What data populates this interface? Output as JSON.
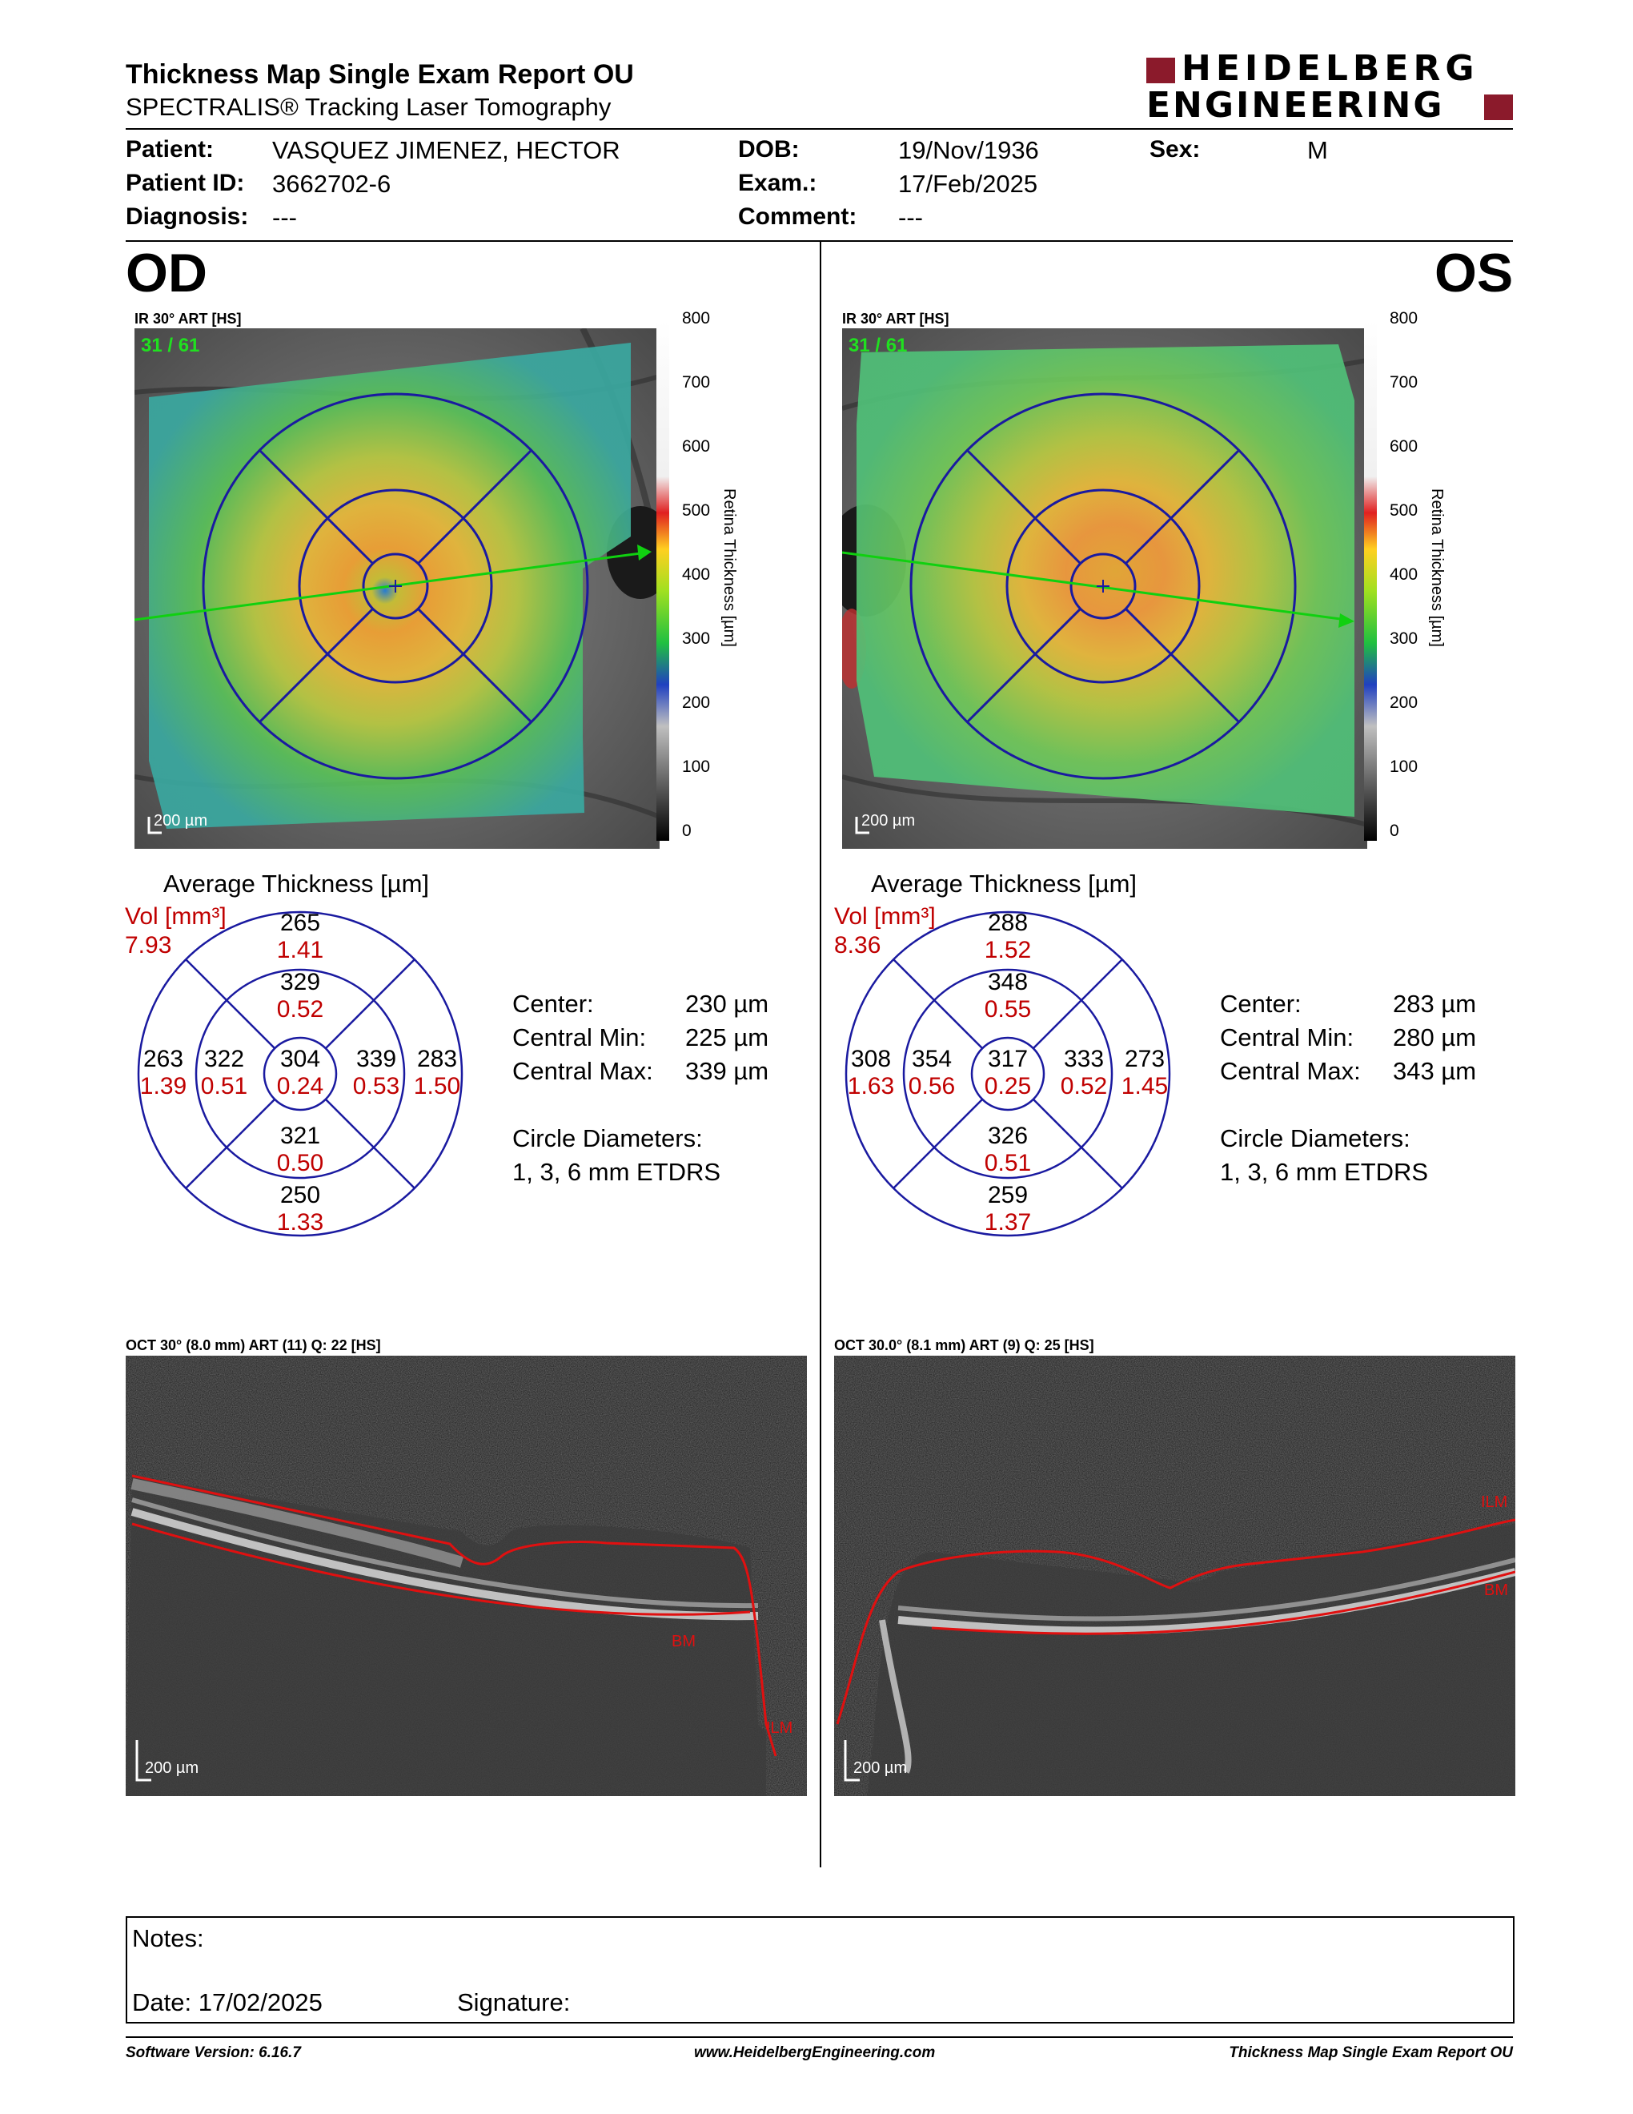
{
  "report": {
    "title": "Thickness Map Single Exam Report OU",
    "subtitle": "SPECTRALIS® Tracking Laser Tomography",
    "brand_line1": "HEIDELBERG",
    "brand_line2": "ENGINEERING",
    "brand_color": "#8b1a2b"
  },
  "patient": {
    "patient_label": "Patient:",
    "patient_value": "VASQUEZ JIMENEZ, HECTOR",
    "id_label": "Patient ID:",
    "id_value": "3662702-6",
    "diagnosis_label": "Diagnosis:",
    "diagnosis_value": "---",
    "dob_label": "DOB:",
    "dob_value": "19/Nov/1936",
    "exam_label": "Exam.:",
    "exam_value": "17/Feb/2025",
    "comment_label": "Comment:",
    "comment_value": "---",
    "sex_label": "Sex:",
    "sex_value": "M"
  },
  "od": {
    "eye": "OD",
    "ir_label": "IR 30° ART [HS]",
    "frame": "31 / 61",
    "scale": "200 µm",
    "avg_title": "Average Thickness [µm]",
    "vol_label": "Vol [mm³]",
    "vol_total": "7.93",
    "sectors": {
      "outer_top": [
        "265",
        "1.41"
      ],
      "inner_top": [
        "329",
        "0.52"
      ],
      "outer_left": [
        "263",
        "1.39"
      ],
      "inner_left": [
        "322",
        "0.51"
      ],
      "center": [
        "304",
        "0.24"
      ],
      "inner_right": [
        "339",
        "0.53"
      ],
      "outer_right": [
        "283",
        "1.50"
      ],
      "inner_bottom": [
        "321",
        "0.50"
      ],
      "outer_bottom": [
        "250",
        "1.33"
      ]
    },
    "center_label": "Center:",
    "center_value": "230 µm",
    "cmin_label": "Central Min:",
    "cmin_value": "225 µm",
    "cmax_label": "Central Max:",
    "cmax_value": "339 µm",
    "circ_label": "Circle Diameters:",
    "circ_value": "1, 3, 6 mm ETDRS",
    "oct_label": "OCT 30° (8.0 mm) ART (11) Q: 22 [HS]",
    "oct_scale": "200 µm",
    "ilm": "ILM",
    "bm": "BM"
  },
  "os": {
    "eye": "OS",
    "ir_label": "IR 30° ART [HS]",
    "frame": "31 / 61",
    "scale": "200 µm",
    "avg_title": "Average Thickness [µm]",
    "vol_label": "Vol [mm³]",
    "vol_total": "8.36",
    "sectors": {
      "outer_top": [
        "288",
        "1.52"
      ],
      "inner_top": [
        "348",
        "0.55"
      ],
      "outer_left": [
        "308",
        "1.63"
      ],
      "inner_left": [
        "354",
        "0.56"
      ],
      "center": [
        "317",
        "0.25"
      ],
      "inner_right": [
        "333",
        "0.52"
      ],
      "outer_right": [
        "273",
        "1.45"
      ],
      "inner_bottom": [
        "326",
        "0.51"
      ],
      "outer_bottom": [
        "259",
        "1.37"
      ]
    },
    "center_label": "Center:",
    "center_value": "283 µm",
    "cmin_label": "Central Min:",
    "cmin_value": "280 µm",
    "cmax_label": "Central Max:",
    "cmax_value": "343 µm",
    "circ_label": "Circle Diameters:",
    "circ_value": "1, 3, 6 mm ETDRS",
    "oct_label": "OCT 30.0° (8.1 mm) ART (9) Q: 25 [HS]",
    "oct_scale": "200 µm",
    "ilm": "ILM",
    "bm": "BM"
  },
  "colorbar": {
    "ticks": [
      "800",
      "700",
      "600",
      "500",
      "400",
      "300",
      "200",
      "100",
      "0"
    ],
    "label": "Retina Thickness [µm]"
  },
  "notes": {
    "notes_label": "Notes:",
    "date_label": "Date: 17/02/2025",
    "signature_label": "Signature:"
  },
  "footer": {
    "software": "Software Version: 6.16.7",
    "url": "www.HeidelbergEngineering.com",
    "report_name": "Thickness Map Single Exam Report OU"
  },
  "colors": {
    "grid_blue": "#1a1aa0",
    "volume_red": "#c00000",
    "segmentation_red": "#e01010",
    "scan_green": "#10d010"
  }
}
